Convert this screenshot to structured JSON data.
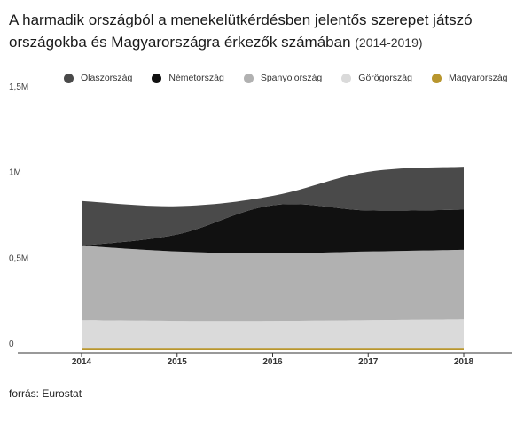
{
  "title": {
    "main": "A harmadik országból a menekelütkérdésben jelentős szerepet játszó országokba és Magyarországra érkezők számában",
    "period": "(2014-2019)"
  },
  "source": "forrás: Eurostat",
  "chart_data": {
    "type": "area",
    "stacked": true,
    "x": [
      2014,
      2015,
      2016,
      2017,
      2018
    ],
    "x_tick_labels": [
      "2014",
      "2015",
      "2016",
      "2017",
      "2018"
    ],
    "y_tick_labels": [
      "0",
      "0,5M",
      "1M",
      "1,5M"
    ],
    "y_ticks": [
      0,
      500000,
      1000000,
      1500000
    ],
    "ylim": [
      0,
      1500000
    ],
    "grid": false,
    "legend_position": "top",
    "series": [
      {
        "name": "Magyarország",
        "color": "#b8962e",
        "values": [
          10000,
          10000,
          10000,
          10000,
          10000
        ]
      },
      {
        "name": "Görögország",
        "color": "#dadada",
        "values": [
          165000,
          160000,
          160000,
          165000,
          170000
        ]
      },
      {
        "name": "Spanyolország",
        "color": "#b1b1b1",
        "values": [
          435000,
          405000,
          395000,
          400000,
          405000
        ]
      },
      {
        "name": "Németország",
        "color": "#111111",
        "values": [
          0,
          100000,
          280000,
          240000,
          235000
        ]
      },
      {
        "name": "Olaszország",
        "color": "#4a4a4a",
        "values": [
          260000,
          165000,
          55000,
          225000,
          250000
        ]
      }
    ],
    "legend_order": [
      "Olaszország",
      "Németország",
      "Spanyolország",
      "Görögország",
      "Magyarország"
    ]
  }
}
